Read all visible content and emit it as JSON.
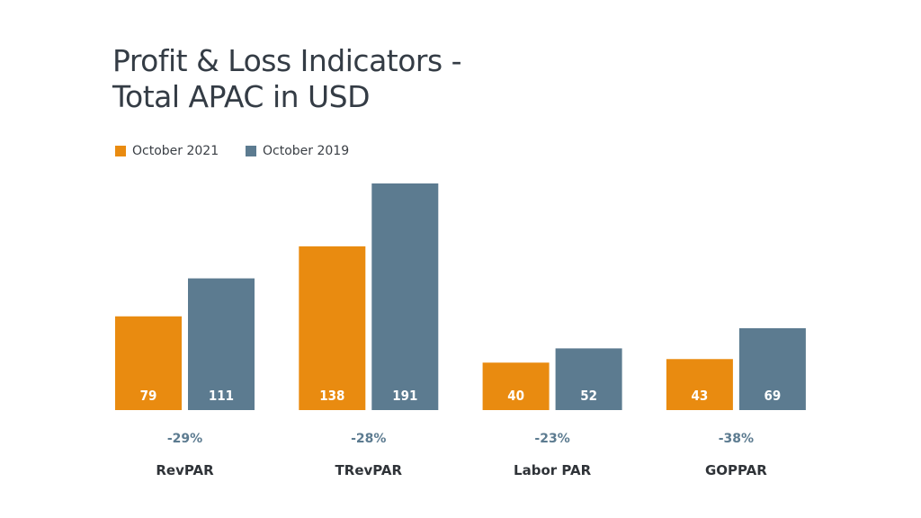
{
  "chart_data": {
    "type": "bar",
    "title": [
      "Profit & Loss Indicators -",
      "Total APAC in USD"
    ],
    "categories": [
      "RevPAR",
      "TRevPAR",
      "Labor PAR",
      "GOPPAR"
    ],
    "series": [
      {
        "name": "October 2021",
        "color": "#e98b10",
        "values": [
          79,
          138,
          40,
          43
        ]
      },
      {
        "name": "October 2019",
        "color": "#5c7b90",
        "values": [
          111,
          191,
          52,
          69
        ]
      }
    ],
    "change_labels": [
      "-29%",
      "-28%",
      "-23%",
      "-38%"
    ],
    "change_color": "#5c7b90",
    "legend_position": "top-left",
    "grid": false,
    "ylim": [
      0,
      200
    ]
  }
}
